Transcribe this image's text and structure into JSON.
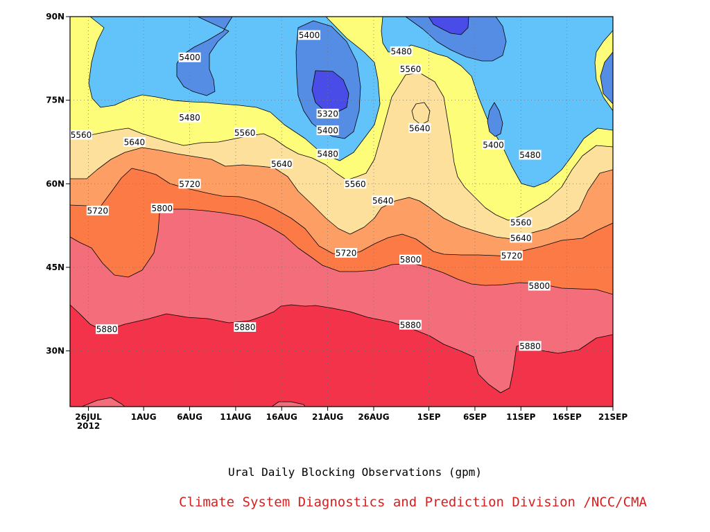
{
  "chart_data": {
    "type": "contour",
    "title": "",
    "subtitle": "Ural Daily Blocking Observations (gpm)",
    "credit": "Climate System Diagnostics and Prediction Division /NCC/CMA",
    "xlabel": "",
    "ylabel": "",
    "x_axis": {
      "range": [
        "2012-07-24",
        "2012-09-21"
      ],
      "ticks": [
        {
          "date": "2012-07-26",
          "label": "26JUL",
          "sublabel": "2012"
        },
        {
          "date": "2012-08-01",
          "label": "1AUG"
        },
        {
          "date": "2012-08-06",
          "label": "6AUG"
        },
        {
          "date": "2012-08-11",
          "label": "11AUG"
        },
        {
          "date": "2012-08-16",
          "label": "16AUG"
        },
        {
          "date": "2012-08-21",
          "label": "21AUG"
        },
        {
          "date": "2012-08-26",
          "label": "26AUG"
        },
        {
          "date": "2012-09-01",
          "label": "1SEP"
        },
        {
          "date": "2012-09-06",
          "label": "6SEP"
        },
        {
          "date": "2012-09-11",
          "label": "11SEP"
        },
        {
          "date": "2012-09-16",
          "label": "16SEP"
        },
        {
          "date": "2012-09-21",
          "label": "21SEP"
        }
      ]
    },
    "y_axis": {
      "range": [
        20,
        90
      ],
      "ticks": [
        {
          "value": 30,
          "label": "30N"
        },
        {
          "value": 45,
          "label": "45N"
        },
        {
          "value": 60,
          "label": "60N"
        },
        {
          "value": 75,
          "label": "75N"
        },
        {
          "value": 90,
          "label": "90N"
        }
      ]
    },
    "grid": true,
    "contour_levels": [
      5320,
      5400,
      5480,
      5560,
      5640,
      5720,
      5800,
      5880
    ],
    "fill_colors": {
      "above_5880": "#f2334a",
      "5800_5880": "#f46d7a",
      "5720_5800": "#fb7a46",
      "5640_5720": "#fd9e65",
      "5560_5640": "#fde09b",
      "5480_5560": "#fdfd7a",
      "5400_5480": "#62c3fb",
      "5320_5400": "#558de5",
      "below_5320": "#4a4ce8"
    },
    "contour_labels": [
      {
        "text": "5400",
        "date": "2012-08-06",
        "lat": 82.7
      },
      {
        "text": "5400",
        "date": "2012-08-19",
        "lat": 86.7
      },
      {
        "text": "5480",
        "date": "2012-08-06",
        "lat": 71.9
      },
      {
        "text": "5320",
        "date": "2012-08-21",
        "lat": 72.6
      },
      {
        "text": "5400",
        "date": "2012-08-21",
        "lat": 69.6
      },
      {
        "text": "5480",
        "date": "2012-08-21",
        "lat": 65.4
      },
      {
        "text": "5480",
        "date": "2012-08-29",
        "lat": 83.8
      },
      {
        "text": "5560",
        "date": "2012-08-30",
        "lat": 80.6
      },
      {
        "text": "5640",
        "date": "2012-08-31",
        "lat": 70.0
      },
      {
        "text": "5400",
        "date": "2012-09-08",
        "lat": 67.0
      },
      {
        "text": "5480",
        "date": "2012-09-12",
        "lat": 65.2
      },
      {
        "text": "5560",
        "date": "2012-07-24",
        "lat": 68.8
      },
      {
        "text": "5640",
        "date": "2012-07-31",
        "lat": 67.5
      },
      {
        "text": "5560",
        "date": "2012-08-12",
        "lat": 69.2
      },
      {
        "text": "5640",
        "date": "2012-08-16",
        "lat": 63.6
      },
      {
        "text": "5720",
        "date": "2012-08-06",
        "lat": 60.0
      },
      {
        "text": "5720",
        "date": "2012-07-27",
        "lat": 55.2
      },
      {
        "text": "5800",
        "date": "2012-08-03",
        "lat": 55.6
      },
      {
        "text": "5560",
        "date": "2012-08-24",
        "lat": 60.0
      },
      {
        "text": "5640",
        "date": "2012-08-27",
        "lat": 57.0
      },
      {
        "text": "5720",
        "date": "2012-08-23",
        "lat": 47.6
      },
      {
        "text": "5800",
        "date": "2012-08-30",
        "lat": 46.4
      },
      {
        "text": "5560",
        "date": "2012-09-11",
        "lat": 53.1
      },
      {
        "text": "5640",
        "date": "2012-09-11",
        "lat": 50.3
      },
      {
        "text": "5720",
        "date": "2012-09-10",
        "lat": 47.1
      },
      {
        "text": "5800",
        "date": "2012-09-13",
        "lat": 41.7
      },
      {
        "text": "5880",
        "date": "2012-07-28",
        "lat": 33.9
      },
      {
        "text": "5880",
        "date": "2012-08-12",
        "lat": 34.3
      },
      {
        "text": "5880",
        "date": "2012-08-30",
        "lat": 34.7
      },
      {
        "text": "5880",
        "date": "2012-09-12",
        "lat": 30.9
      }
    ],
    "note": "Filled contour bands of 500hPa geopotential height (gpm); band boundaries traced approximately from the image."
  }
}
